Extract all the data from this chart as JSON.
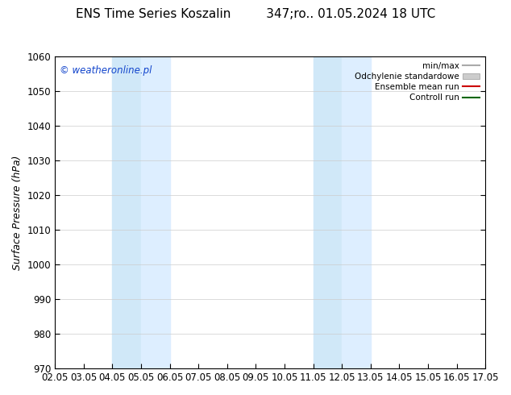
{
  "title": "ENS Time Series Koszalin         347;ro.. 01.05.2024 18 UTC",
  "ylabel": "Surface Pressure (hPa)",
  "ylim": [
    970,
    1060
  ],
  "yticks": [
    970,
    980,
    990,
    1000,
    1010,
    1020,
    1030,
    1040,
    1050,
    1060
  ],
  "xlim": [
    0,
    15
  ],
  "xtick_labels": [
    "02.05",
    "03.05",
    "04.05",
    "05.05",
    "06.05",
    "07.05",
    "08.05",
    "09.05",
    "10.05",
    "11.05",
    "12.05",
    "13.05",
    "14.05",
    "15.05",
    "16.05",
    "17.05"
  ],
  "xtick_positions": [
    0,
    1,
    2,
    3,
    4,
    5,
    6,
    7,
    8,
    9,
    10,
    11,
    12,
    13,
    14,
    15
  ],
  "watermark": "© weatheronline.pl",
  "watermark_color": "#1144cc",
  "background_color": "#ffffff",
  "plot_bg_color": "#ffffff",
  "shaded_regions": [
    {
      "x_start": 2.0,
      "x_end": 3.0,
      "color": "#d0e8f8"
    },
    {
      "x_start": 3.0,
      "x_end": 4.0,
      "color": "#ddeeff"
    },
    {
      "x_start": 9.0,
      "x_end": 10.0,
      "color": "#d0e8f8"
    },
    {
      "x_start": 10.0,
      "x_end": 11.0,
      "color": "#ddeeff"
    }
  ],
  "legend_entries": [
    {
      "label": "min/max",
      "color": "#aaaaaa",
      "style": "line",
      "lw": 1.5
    },
    {
      "label": "Odchylenie standardowe",
      "color": "#cccccc",
      "style": "bar"
    },
    {
      "label": "Ensemble mean run",
      "color": "#cc0000",
      "style": "line",
      "lw": 1.5
    },
    {
      "label": "Controll run",
      "color": "#006600",
      "style": "line",
      "lw": 1.5
    }
  ],
  "grid_color": "#cccccc",
  "title_fontsize": 11,
  "axis_label_fontsize": 9,
  "tick_fontsize": 8.5
}
